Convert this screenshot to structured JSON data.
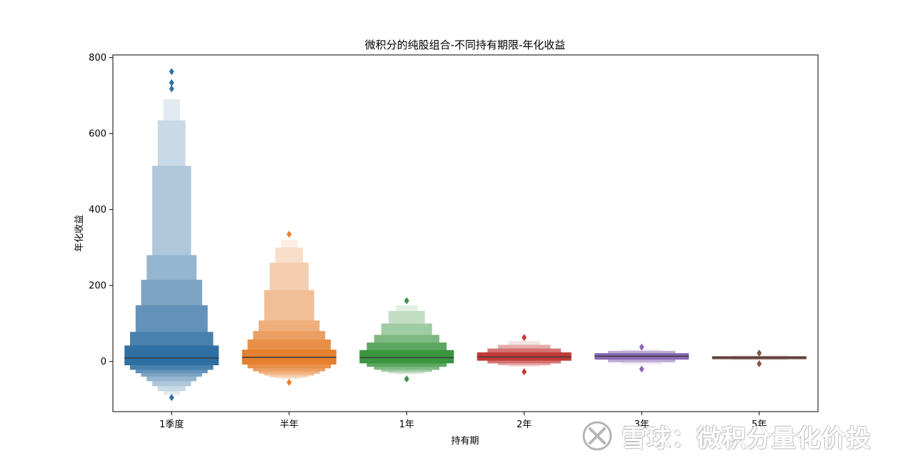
{
  "chart_data": {
    "type": "boxen",
    "title": "微积分的纯股组合-不同持有期限-年化收益",
    "xlabel": "持有期",
    "ylabel": "年化收益",
    "ylim": [
      -132,
      807
    ],
    "yticks": [
      0,
      200,
      400,
      600,
      800
    ],
    "categories": [
      "1季度",
      "半年",
      "1年",
      "2年",
      "3年",
      "5年"
    ],
    "series": [
      {
        "category": "1季度",
        "color": "#2f6fa2",
        "median": 9,
        "levels": [
          {
            "lo": -10,
            "hi": 42
          },
          {
            "lo": -22,
            "hi": 78
          },
          {
            "lo": -31,
            "hi": 148
          },
          {
            "lo": -40,
            "hi": 215
          },
          {
            "lo": -52,
            "hi": 280
          },
          {
            "lo": -65,
            "hi": 515
          },
          {
            "lo": -78,
            "hi": 635
          },
          {
            "lo": -88,
            "hi": 690
          }
        ],
        "outliers": [
          -95,
          718,
          734,
          763
        ]
      },
      {
        "category": "半年",
        "color": "#e5802f",
        "median": 11,
        "levels": [
          {
            "lo": -8,
            "hi": 31
          },
          {
            "lo": -18,
            "hi": 58
          },
          {
            "lo": -26,
            "hi": 80
          },
          {
            "lo": -32,
            "hi": 108
          },
          {
            "lo": -37,
            "hi": 188
          },
          {
            "lo": -41,
            "hi": 260
          },
          {
            "lo": -44,
            "hi": 300
          },
          {
            "lo": -46,
            "hi": 320
          }
        ],
        "outliers": [
          -55,
          335
        ]
      },
      {
        "category": "1年",
        "color": "#3a9540",
        "median": 10,
        "levels": [
          {
            "lo": -5,
            "hi": 30
          },
          {
            "lo": -14,
            "hi": 50
          },
          {
            "lo": -22,
            "hi": 70
          },
          {
            "lo": -27,
            "hi": 100
          },
          {
            "lo": -31,
            "hi": 133
          },
          {
            "lo": -34,
            "hi": 148
          }
        ],
        "outliers": [
          -46,
          160
        ]
      },
      {
        "category": "2年",
        "color": "#c23a38",
        "median": 12,
        "levels": [
          {
            "lo": 2,
            "hi": 24
          },
          {
            "lo": -5,
            "hi": 34
          },
          {
            "lo": -10,
            "hi": 44
          },
          {
            "lo": -14,
            "hi": 54
          }
        ],
        "outliers": [
          -27,
          63
        ]
      },
      {
        "category": "3年",
        "color": "#8b69b3",
        "median": 14,
        "levels": [
          {
            "lo": 5,
            "hi": 22
          },
          {
            "lo": -2,
            "hi": 28
          },
          {
            "lo": -8,
            "hi": 32
          }
        ],
        "outliers": [
          -20,
          38
        ]
      },
      {
        "category": "5年",
        "color": "#86564d",
        "median": 10,
        "levels": [
          {
            "lo": 6,
            "hi": 14
          },
          {
            "lo": 3,
            "hi": 17
          }
        ],
        "outliers": [
          -6,
          22
        ]
      }
    ],
    "grid": false,
    "legend": "none"
  },
  "watermark": {
    "text": "雪球：微积分量化价投"
  }
}
